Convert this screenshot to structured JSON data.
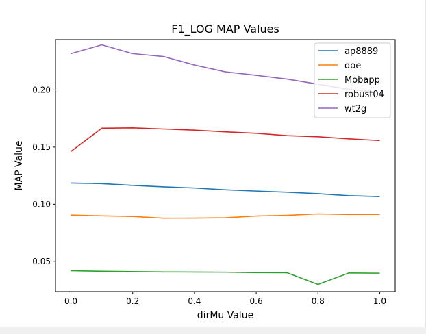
{
  "chart_data": {
    "type": "line",
    "title": "F1_LOG MAP Values",
    "xlabel": "dirMu Value",
    "ylabel": "MAP Value",
    "x": [
      0.0,
      0.1,
      0.2,
      0.3,
      0.4,
      0.5,
      0.6,
      0.7,
      0.8,
      0.9,
      1.0
    ],
    "xlim": [
      -0.05,
      1.05
    ],
    "ylim": [
      0.0235,
      0.244
    ],
    "xticks": [
      0.0,
      0.2,
      0.4,
      0.6,
      0.8,
      1.0
    ],
    "xtick_labels": [
      "0.0",
      "0.2",
      "0.4",
      "0.6",
      "0.8",
      "1.0"
    ],
    "yticks": [
      0.05,
      0.1,
      0.15,
      0.2
    ],
    "ytick_labels": [
      "0.05",
      "0.10",
      "0.15",
      "0.20"
    ],
    "grid": false,
    "legend_position": "upper right",
    "series": [
      {
        "name": "ap8889",
        "color": "#1f77b4",
        "values": [
          0.1185,
          0.118,
          0.1165,
          0.1152,
          0.1142,
          0.1126,
          0.1115,
          0.1105,
          0.1092,
          0.1075,
          0.1067
        ]
      },
      {
        "name": "doe",
        "color": "#ff7f0e",
        "values": [
          0.0905,
          0.0898,
          0.0893,
          0.0878,
          0.0879,
          0.0882,
          0.0897,
          0.0903,
          0.0915,
          0.091,
          0.0911
        ]
      },
      {
        "name": "Mobapp",
        "color": "#2ca02c",
        "values": [
          0.0418,
          0.0413,
          0.041,
          0.0407,
          0.0406,
          0.0405,
          0.0401,
          0.04,
          0.0298,
          0.0398,
          0.0396
        ]
      },
      {
        "name": "robust04",
        "color": "#d62728",
        "values": [
          0.1462,
          0.1665,
          0.1668,
          0.1658,
          0.1648,
          0.1633,
          0.162,
          0.16,
          0.159,
          0.1572,
          0.1557
        ]
      },
      {
        "name": "wt2g",
        "color": "#9467bd",
        "values": [
          0.2318,
          0.2395,
          0.2318,
          0.2293,
          0.2218,
          0.2158,
          0.2128,
          0.2095,
          0.205,
          0.2005,
          0.198
        ]
      }
    ]
  }
}
